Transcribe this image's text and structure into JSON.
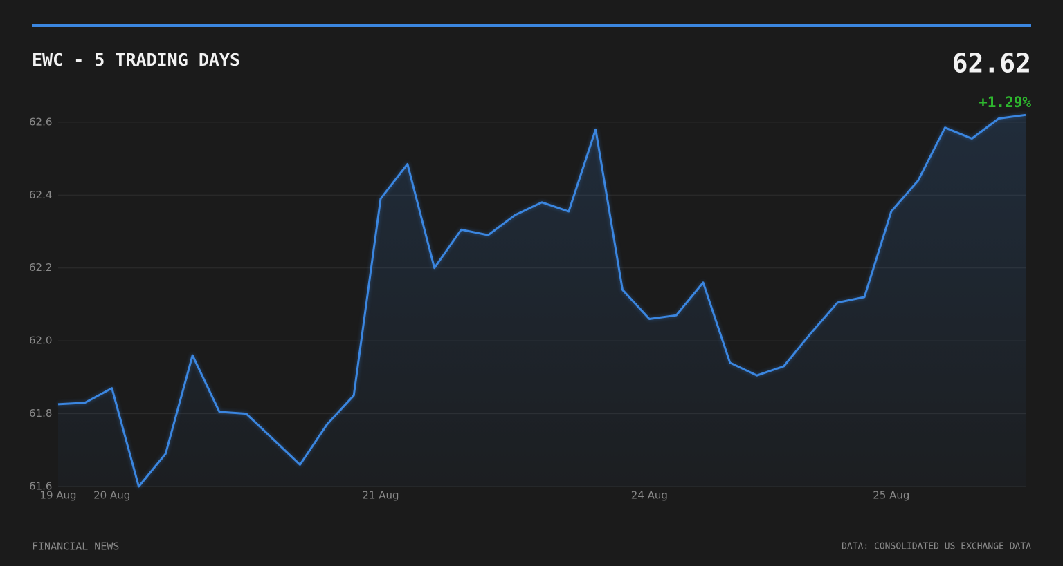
{
  "chart_data": {
    "type": "line",
    "title": "EWC - 5 TRADING DAYS",
    "price": "62.62",
    "change": "+1.29%",
    "footer_left": "FINANCIAL NEWS",
    "source": "DATA: CONSOLIDATED US EXCHANGE DATA",
    "categories": [
      "19 Aug",
      null,
      "20 Aug",
      null,
      null,
      null,
      null,
      null,
      null,
      null,
      null,
      null,
      "21 Aug",
      null,
      null,
      null,
      null,
      null,
      null,
      null,
      null,
      null,
      "24 Aug",
      null,
      null,
      null,
      null,
      null,
      null,
      null,
      null,
      "25 Aug",
      null,
      null,
      null,
      null,
      null
    ],
    "series": [
      {
        "name": "EWC",
        "color": "#3b86e0",
        "values": [
          61.826,
          61.83,
          61.87,
          61.6,
          61.69,
          61.96,
          61.805,
          61.8,
          61.73,
          61.66,
          61.77,
          61.85,
          62.39,
          62.485,
          62.2,
          62.305,
          62.29,
          62.345,
          62.38,
          62.355,
          62.58,
          62.14,
          62.06,
          62.07,
          62.16,
          61.94,
          61.905,
          61.93,
          62.02,
          62.105,
          62.12,
          62.355,
          62.44,
          62.585,
          62.555,
          62.61,
          62.62
        ]
      }
    ],
    "ylim": [
      61.6,
      62.63
    ],
    "yticks": [
      61.6,
      61.8,
      {
        "value": 62,
        "label": "62.0"
      },
      62.2,
      62.4,
      62.6
    ],
    "grid": true,
    "change_color": "#2eb82e"
  }
}
